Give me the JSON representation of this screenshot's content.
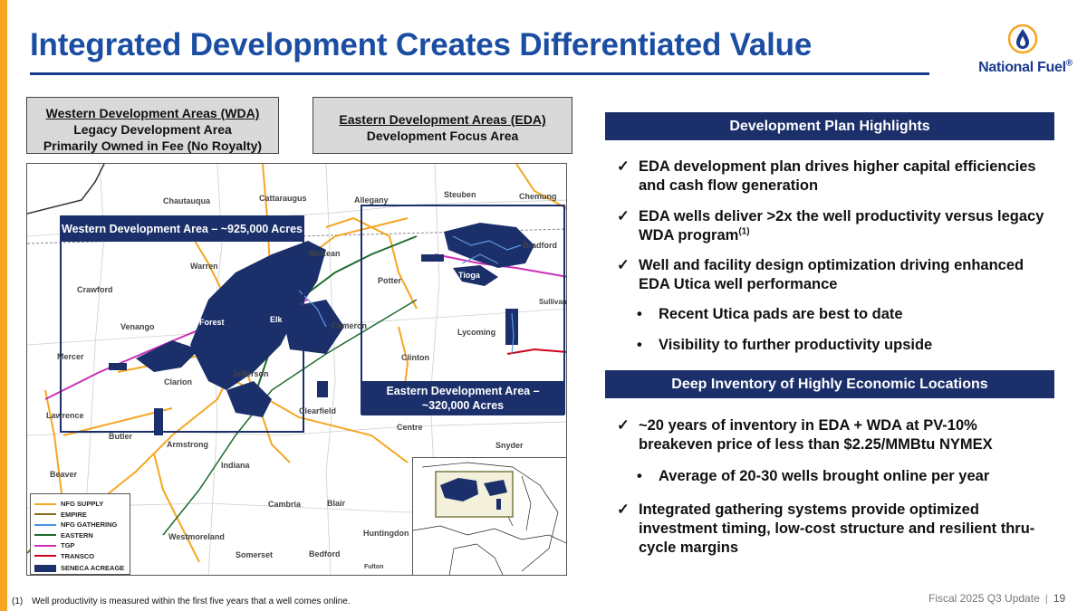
{
  "title": "Integrated Development Creates Differentiated Value",
  "logo": {
    "text": "National Fuel",
    "trademark": "®",
    "icon": "flame-drop-icon"
  },
  "wda_box": {
    "line1": "Western Development Areas (WDA)",
    "line2": "Legacy Development Area",
    "line3": "Primarily Owned in Fee (No Royalty)"
  },
  "eda_box": {
    "line1": "Eastern Development Areas (EDA)",
    "line2": "Development Focus Area"
  },
  "map": {
    "wda_label": "Western Development Area – ~925,000 Acres",
    "eda_label_line1": "Eastern Development Area –",
    "eda_label_line2": "~320,000 Acres",
    "counties": [
      "Chautauqua",
      "Cattaraugus",
      "Allegany",
      "Steuben",
      "Chemung",
      "McKean",
      "Bradford",
      "Warren",
      "Potter",
      "Tioga",
      "Crawford",
      "Sullivan",
      "Venango",
      "Forest",
      "Elk",
      "Cameron",
      "Lycoming",
      "Mercer",
      "Clinton",
      "Jefferson",
      "Clarion",
      "Clearfield",
      "Lawrence",
      "Centre",
      "Butler",
      "Armstrong",
      "Snyder",
      "Indiana",
      "Beaver",
      "Cambria",
      "Blair",
      "Huntingdon",
      "Westmoreland",
      "Somerset",
      "Bedford",
      "Fulton"
    ],
    "legend": [
      {
        "label": "NFG SUPPLY",
        "color": "#f5a623"
      },
      {
        "label": "EMPIRE",
        "color": "#8b6a1e"
      },
      {
        "label": "NFG GATHERING",
        "color": "#4a90e2"
      },
      {
        "label": "EASTERN",
        "color": "#1e6b2e"
      },
      {
        "label": "TGP",
        "color": "#cc2fb8"
      },
      {
        "label": "TRANSCO",
        "color": "#d0021b"
      },
      {
        "label": "SENECA ACREAGE",
        "color": "#1b2f6b"
      }
    ]
  },
  "highlights": {
    "header": "Development Plan Highlights",
    "items": [
      {
        "text": "EDA development plan drives higher capital efficiencies and cash flow generation"
      },
      {
        "text": "EDA wells deliver >2x the well productivity versus legacy WDA program",
        "sup": "(1)"
      },
      {
        "text": "Well and facility design optimization driving enhanced EDA Utica well performance"
      }
    ],
    "sub_items": [
      "Recent Utica pads are best to date",
      "Visibility to further productivity upside"
    ]
  },
  "inventory": {
    "header": "Deep Inventory of Highly Economic Locations",
    "item1": "~20 years of inventory in EDA + WDA at PV-10% breakeven price of less than $2.25/MMBtu NYMEX",
    "sub_item": "Average of 20-30 wells brought online per year",
    "item2": "Integrated gathering systems provide optimized investment timing, low-cost structure and resilient thru-cycle margins"
  },
  "markers": {
    "check": "✓",
    "dot": "•"
  },
  "footnote": {
    "number": "(1)",
    "text": "Well productivity is measured within the first five years that a well comes online."
  },
  "footer": {
    "label": "Fiscal 2025 Q3 Update",
    "separator": "|",
    "page": "19"
  },
  "colors": {
    "title": "#1b4ea3",
    "navy": "#1b2f6b",
    "accent": "#f5a623"
  }
}
